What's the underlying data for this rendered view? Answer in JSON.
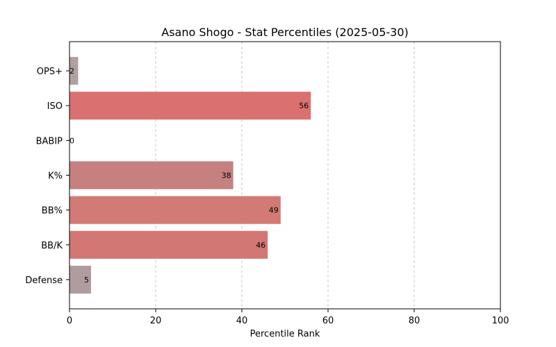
{
  "chart_data": {
    "type": "bar",
    "orientation": "horizontal",
    "title": "Asano Shogo - Stat Percentiles (2025-05-30)",
    "xlabel": "Percentile Rank",
    "ylabel": "",
    "xlim": [
      0,
      100
    ],
    "xticks": [
      0,
      20,
      40,
      60,
      80,
      100
    ],
    "grid": "vertical dashed",
    "categories": [
      "OPS+",
      "ISO",
      "BABIP",
      "K%",
      "BB%",
      "BB/K",
      "Defense"
    ],
    "values": [
      2,
      56,
      0,
      38,
      49,
      46,
      5
    ],
    "colors": [
      "#b0a0a0",
      "#db7070",
      "#b0a0a0",
      "#c68080",
      "#d27a76",
      "#d37774",
      "#b09c9e"
    ]
  }
}
